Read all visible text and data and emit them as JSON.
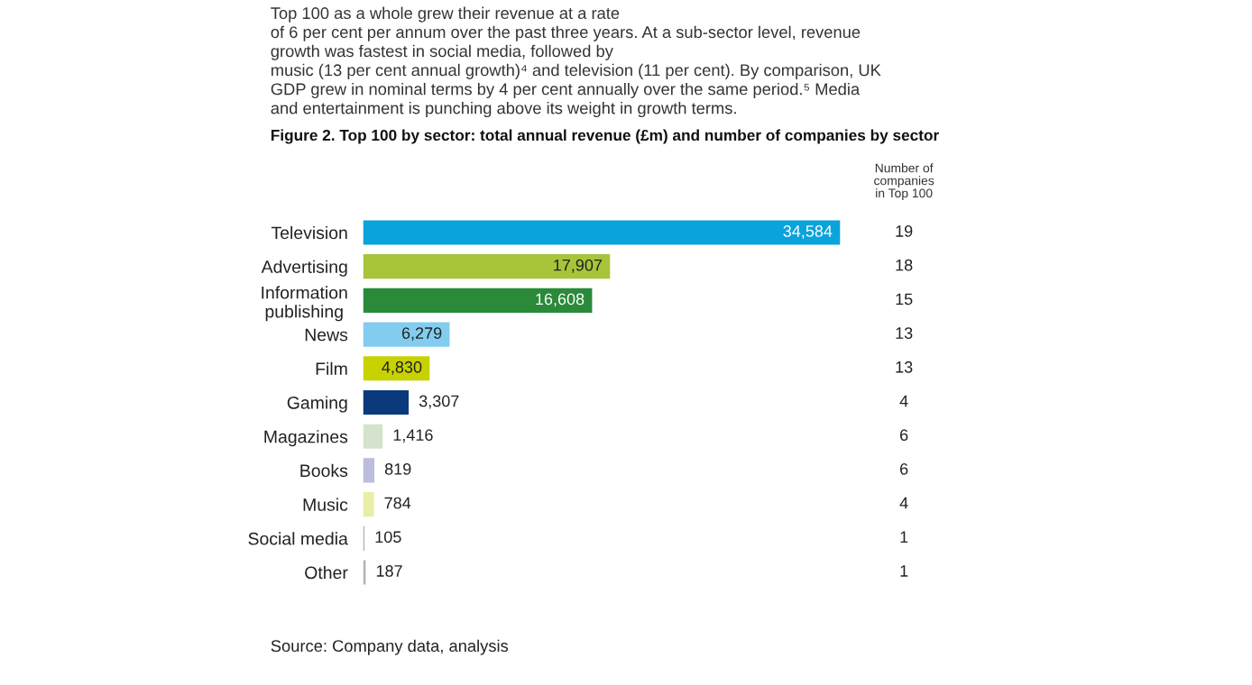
{
  "chart_data": {
    "type": "bar",
    "orientation": "horizontal",
    "title": "Figure 2. Top 100 by sector: total annual revenue (£m) and number of companies by sector",
    "categories": [
      "Television",
      "Advertising",
      "Information\npublishing",
      "News",
      "Film",
      "Gaming",
      "Magazines",
      "Books",
      "Music",
      "Social media",
      "Other"
    ],
    "values": [
      34584,
      17907,
      16608,
      6279,
      4830,
      3307,
      1416,
      819,
      784,
      105,
      187
    ],
    "value_labels": [
      "34,584",
      "17,907",
      "16,608",
      "6,279",
      "4,830",
      "3,307",
      "1,416",
      "819",
      "784",
      "105",
      "187"
    ],
    "colors": [
      "#0aa3dc",
      "#a8c43a",
      "#2a8a3a",
      "#82cdef",
      "#c8d200",
      "#0b3a7c",
      "#d3e3cc",
      "#bcbcdc",
      "#e9eda6",
      "#b4b4b4",
      "#b4b4b4"
    ],
    "tick_labels": "y",
    "grid": false,
    "annotations": [
      "Top 100 as a whole grew their revenue at a rate\nof 6 per cent per annum over the past three years. At a sub-sector level, revenue\ngrowth was fastest in social media, followed by\nmusic (13 per cent annual growth)⁴ and television (11 per cent). By comparison, UK\nGDP grew in nominal terms by 4 per cent annually over the same period.⁵ Media\nand entertainment is punching above its weight in growth terms.",
      "Number of\ncompanies\nin Top 100",
      "19",
      "18",
      "15",
      "13",
      "13",
      "4",
      "6",
      "6",
      "4",
      "1",
      "1",
      "Source: Company data, analysis"
    ]
  }
}
